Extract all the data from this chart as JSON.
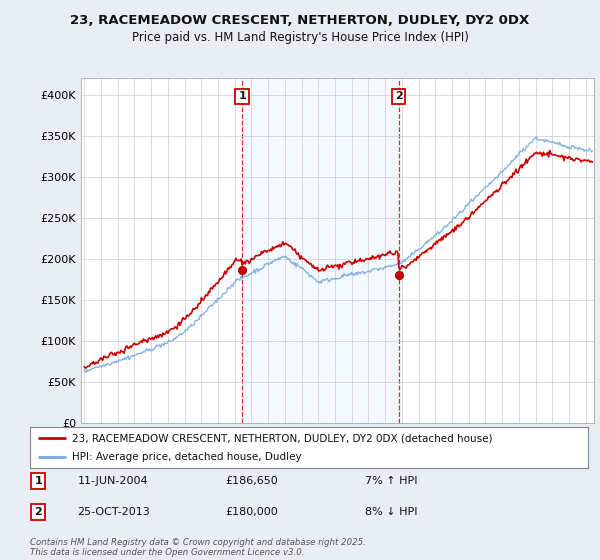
{
  "title_line1": "23, RACEMEADOW CRESCENT, NETHERTON, DUDLEY, DY2 0DX",
  "title_line2": "Price paid vs. HM Land Registry's House Price Index (HPI)",
  "ylim": [
    0,
    420000
  ],
  "yticks": [
    0,
    50000,
    100000,
    150000,
    200000,
    250000,
    300000,
    350000,
    400000
  ],
  "ytick_labels": [
    "£0",
    "£50K",
    "£100K",
    "£150K",
    "£200K",
    "£250K",
    "£300K",
    "£350K",
    "£400K"
  ],
  "xlim_start": 1994.8,
  "xlim_end": 2025.5,
  "sale1_x": 2004.44,
  "sale1_y": 186650,
  "sale2_x": 2013.81,
  "sale2_y": 180000,
  "sale1_label": "1",
  "sale2_label": "2",
  "sale1_date": "11-JUN-2004",
  "sale1_price": "£186,650",
  "sale1_hpi": "7% ↑ HPI",
  "sale2_date": "25-OCT-2013",
  "sale2_price": "£180,000",
  "sale2_hpi": "8% ↓ HPI",
  "legend_line1": "23, RACEMEADOW CRESCENT, NETHERTON, DUDLEY, DY2 0DX (detached house)",
  "legend_line2": "HPI: Average price, detached house, Dudley",
  "line_color_paid": "#cc0000",
  "line_color_hpi": "#7aaadd",
  "shade_color": "#ddeeff",
  "background_color": "#e8eef4",
  "plot_bg": "#ffffff",
  "footer": "Contains HM Land Registry data © Crown copyright and database right 2025.\nThis data is licensed under the Open Government Licence v3.0."
}
